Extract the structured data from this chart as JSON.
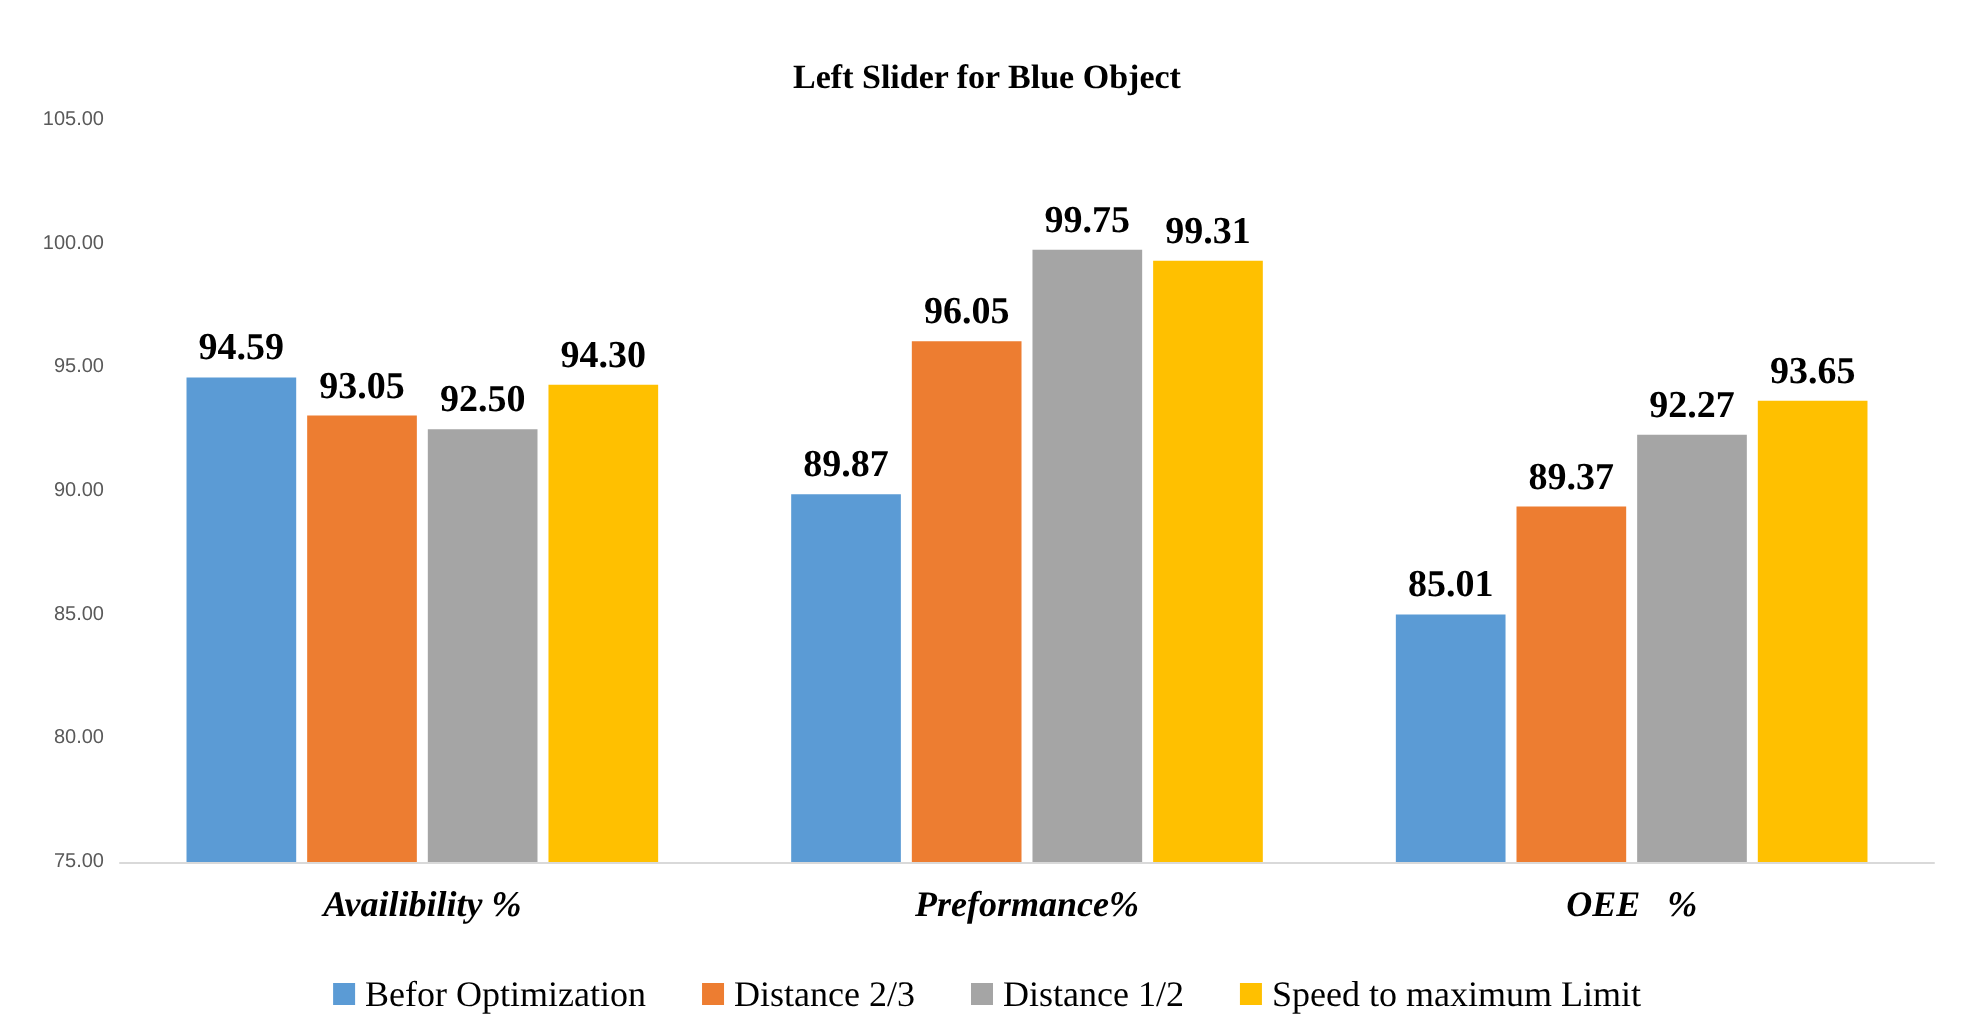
{
  "chart_data": {
    "type": "bar",
    "title": "Left Slider for Blue Object",
    "categories": [
      "Availibility %",
      "Preformance%",
      "OEE   %"
    ],
    "series": [
      {
        "name": "Befor Optimization",
        "color": "#5b9bd5",
        "values": [
          94.59,
          89.87,
          85.01
        ],
        "value_labels": [
          "94.59",
          "89.87",
          "85.01"
        ]
      },
      {
        "name": "Distance 2/3",
        "color": "#ed7d31",
        "values": [
          93.05,
          96.05,
          89.37
        ],
        "value_labels": [
          "93.05",
          "96.05",
          "89.37"
        ]
      },
      {
        "name": "Distance 1/2",
        "color": "#a5a5a5",
        "values": [
          92.5,
          99.75,
          92.27
        ],
        "value_labels": [
          "92.50",
          "99.75",
          "92.27"
        ]
      },
      {
        "name": "Speed to maximum Limit",
        "color": "#ffc000",
        "values": [
          94.3,
          99.31,
          93.65
        ],
        "value_labels": [
          "94.30",
          "99.31",
          "93.65"
        ]
      }
    ],
    "ylim": [
      75,
      105
    ],
    "yticks": [
      {
        "value": 75,
        "label": "75.00"
      },
      {
        "value": 80,
        "label": "80.00"
      },
      {
        "value": 85,
        "label": "85.00"
      },
      {
        "value": 90,
        "label": "90.00"
      },
      {
        "value": 95,
        "label": "95.00"
      },
      {
        "value": 100,
        "label": "100.00"
      },
      {
        "value": 105,
        "label": "105.00"
      }
    ],
    "grid": false,
    "legend": "bottom"
  }
}
